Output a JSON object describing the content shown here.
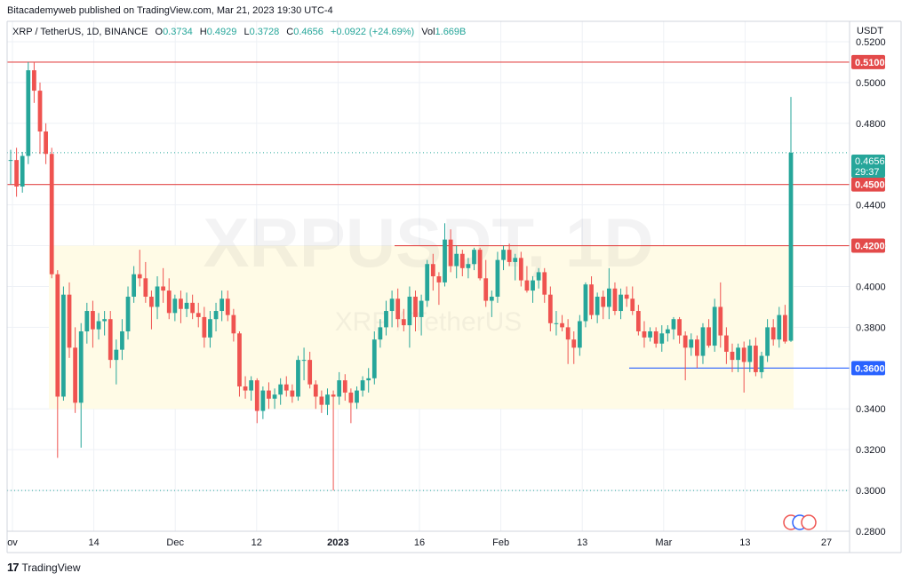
{
  "publisher_line": "Bitacademyweb published on TradingView.com, Mar 21, 2023 19:30 UTC-4",
  "legend": {
    "symbol": "XRP / TetherUS, 1D, BINANCE",
    "o_label": "O",
    "o": "0.3734",
    "h_label": "H",
    "h": "0.4929",
    "l_label": "L",
    "l": "0.3728",
    "c_label": "C",
    "c": "0.4656",
    "change": "+0.0922 (+24.69%)",
    "vol_label": "Vol",
    "vol": "1.669B"
  },
  "watermark": {
    "main": "XRPUSDT, 1D",
    "sub": "XRP / TetherUS"
  },
  "price_axis": {
    "unit": "USDT",
    "ticks": [
      "0.5200",
      "0.5000",
      "0.4800",
      "0.4400",
      "0.4200",
      "0.4000",
      "0.3800",
      "0.3400",
      "0.3200",
      "0.3000",
      "0.2800"
    ],
    "current_price": "0.4656",
    "countdown": "29:37"
  },
  "time_axis": {
    "ticks": [
      "ov",
      "14",
      "Dec",
      "12",
      "2023",
      "16",
      "Feb",
      "13",
      "Mar",
      "13",
      "27"
    ]
  },
  "levels": [
    {
      "label": "0.5100",
      "value": 0.51,
      "color": "#e34a4a"
    },
    {
      "label": "0.4500",
      "value": 0.45,
      "color": "#e34a4a"
    },
    {
      "label": "0.4200",
      "value": 0.42,
      "color": "#e34a4a"
    },
    {
      "label": "0.3600",
      "value": 0.36,
      "color": "#2962ff"
    }
  ],
  "footer_brand": "TradingView",
  "colors": {
    "up": "#26a69a",
    "down": "#ef5350",
    "zone": "#fffbe6",
    "grid": "#eef1f6"
  },
  "chart_data": {
    "type": "candlestick",
    "title": "XRP / TetherUS, 1D, BINANCE",
    "ylabel": "USDT",
    "ylim": [
      0.28,
      0.53
    ],
    "consolidation_zone": [
      0.34,
      0.42
    ],
    "candles": [
      {
        "o": 0.462,
        "h": 0.467,
        "l": 0.45,
        "c": 0.462
      },
      {
        "o": 0.462,
        "h": 0.468,
        "l": 0.444,
        "c": 0.449
      },
      {
        "o": 0.449,
        "h": 0.466,
        "l": 0.446,
        "c": 0.464
      },
      {
        "o": 0.464,
        "h": 0.51,
        "l": 0.46,
        "c": 0.506
      },
      {
        "o": 0.506,
        "h": 0.51,
        "l": 0.49,
        "c": 0.496
      },
      {
        "o": 0.496,
        "h": 0.5,
        "l": 0.465,
        "c": 0.476
      },
      {
        "o": 0.476,
        "h": 0.48,
        "l": 0.46,
        "c": 0.465
      },
      {
        "o": 0.465,
        "h": 0.468,
        "l": 0.404,
        "c": 0.406
      },
      {
        "o": 0.406,
        "h": 0.408,
        "l": 0.316,
        "c": 0.346
      },
      {
        "o": 0.346,
        "h": 0.4,
        "l": 0.344,
        "c": 0.396
      },
      {
        "o": 0.396,
        "h": 0.402,
        "l": 0.365,
        "c": 0.37
      },
      {
        "o": 0.37,
        "h": 0.38,
        "l": 0.338,
        "c": 0.343
      },
      {
        "o": 0.343,
        "h": 0.382,
        "l": 0.321,
        "c": 0.378
      },
      {
        "o": 0.378,
        "h": 0.392,
        "l": 0.372,
        "c": 0.388
      },
      {
        "o": 0.388,
        "h": 0.393,
        "l": 0.37,
        "c": 0.379
      },
      {
        "o": 0.379,
        "h": 0.387,
        "l": 0.374,
        "c": 0.383
      },
      {
        "o": 0.383,
        "h": 0.388,
        "l": 0.376,
        "c": 0.384
      },
      {
        "o": 0.384,
        "h": 0.388,
        "l": 0.36,
        "c": 0.364
      },
      {
        "o": 0.364,
        "h": 0.374,
        "l": 0.352,
        "c": 0.369
      },
      {
        "o": 0.369,
        "h": 0.384,
        "l": 0.364,
        "c": 0.378
      },
      {
        "o": 0.378,
        "h": 0.4,
        "l": 0.374,
        "c": 0.395
      },
      {
        "o": 0.395,
        "h": 0.41,
        "l": 0.392,
        "c": 0.406
      },
      {
        "o": 0.406,
        "h": 0.418,
        "l": 0.4,
        "c": 0.404
      },
      {
        "o": 0.404,
        "h": 0.412,
        "l": 0.392,
        "c": 0.395
      },
      {
        "o": 0.395,
        "h": 0.398,
        "l": 0.379,
        "c": 0.39
      },
      {
        "o": 0.39,
        "h": 0.405,
        "l": 0.384,
        "c": 0.4
      },
      {
        "o": 0.4,
        "h": 0.409,
        "l": 0.392,
        "c": 0.398
      },
      {
        "o": 0.398,
        "h": 0.404,
        "l": 0.384,
        "c": 0.387
      },
      {
        "o": 0.387,
        "h": 0.396,
        "l": 0.383,
        "c": 0.394
      },
      {
        "o": 0.394,
        "h": 0.398,
        "l": 0.382,
        "c": 0.389
      },
      {
        "o": 0.389,
        "h": 0.397,
        "l": 0.385,
        "c": 0.392
      },
      {
        "o": 0.392,
        "h": 0.396,
        "l": 0.384,
        "c": 0.387
      },
      {
        "o": 0.387,
        "h": 0.392,
        "l": 0.38,
        "c": 0.385
      },
      {
        "o": 0.385,
        "h": 0.39,
        "l": 0.37,
        "c": 0.375
      },
      {
        "o": 0.375,
        "h": 0.388,
        "l": 0.37,
        "c": 0.384
      },
      {
        "o": 0.384,
        "h": 0.392,
        "l": 0.378,
        "c": 0.388
      },
      {
        "o": 0.388,
        "h": 0.398,
        "l": 0.383,
        "c": 0.394
      },
      {
        "o": 0.394,
        "h": 0.398,
        "l": 0.383,
        "c": 0.386
      },
      {
        "o": 0.386,
        "h": 0.389,
        "l": 0.373,
        "c": 0.377
      },
      {
        "o": 0.377,
        "h": 0.378,
        "l": 0.346,
        "c": 0.351
      },
      {
        "o": 0.351,
        "h": 0.356,
        "l": 0.345,
        "c": 0.349
      },
      {
        "o": 0.349,
        "h": 0.356,
        "l": 0.344,
        "c": 0.354
      },
      {
        "o": 0.354,
        "h": 0.355,
        "l": 0.333,
        "c": 0.339
      },
      {
        "o": 0.339,
        "h": 0.351,
        "l": 0.335,
        "c": 0.349
      },
      {
        "o": 0.349,
        "h": 0.353,
        "l": 0.34,
        "c": 0.345
      },
      {
        "o": 0.345,
        "h": 0.35,
        "l": 0.34,
        "c": 0.347
      },
      {
        "o": 0.347,
        "h": 0.355,
        "l": 0.342,
        "c": 0.352
      },
      {
        "o": 0.352,
        "h": 0.356,
        "l": 0.346,
        "c": 0.349
      },
      {
        "o": 0.349,
        "h": 0.352,
        "l": 0.343,
        "c": 0.346
      },
      {
        "o": 0.346,
        "h": 0.366,
        "l": 0.344,
        "c": 0.364
      },
      {
        "o": 0.364,
        "h": 0.37,
        "l": 0.354,
        "c": 0.364
      },
      {
        "o": 0.364,
        "h": 0.368,
        "l": 0.35,
        "c": 0.352
      },
      {
        "o": 0.352,
        "h": 0.354,
        "l": 0.34,
        "c": 0.346
      },
      {
        "o": 0.346,
        "h": 0.349,
        "l": 0.338,
        "c": 0.342
      },
      {
        "o": 0.342,
        "h": 0.35,
        "l": 0.337,
        "c": 0.347
      },
      {
        "o": 0.347,
        "h": 0.349,
        "l": 0.3,
        "c": 0.346
      },
      {
        "o": 0.346,
        "h": 0.358,
        "l": 0.342,
        "c": 0.354
      },
      {
        "o": 0.354,
        "h": 0.357,
        "l": 0.344,
        "c": 0.348
      },
      {
        "o": 0.348,
        "h": 0.35,
        "l": 0.333,
        "c": 0.343
      },
      {
        "o": 0.343,
        "h": 0.351,
        "l": 0.34,
        "c": 0.349
      },
      {
        "o": 0.349,
        "h": 0.356,
        "l": 0.346,
        "c": 0.354
      },
      {
        "o": 0.354,
        "h": 0.36,
        "l": 0.348,
        "c": 0.355
      },
      {
        "o": 0.355,
        "h": 0.378,
        "l": 0.352,
        "c": 0.374
      },
      {
        "o": 0.374,
        "h": 0.384,
        "l": 0.37,
        "c": 0.38
      },
      {
        "o": 0.38,
        "h": 0.393,
        "l": 0.376,
        "c": 0.388
      },
      {
        "o": 0.388,
        "h": 0.398,
        "l": 0.38,
        "c": 0.394
      },
      {
        "o": 0.394,
        "h": 0.399,
        "l": 0.38,
        "c": 0.384
      },
      {
        "o": 0.384,
        "h": 0.389,
        "l": 0.378,
        "c": 0.381
      },
      {
        "o": 0.381,
        "h": 0.4,
        "l": 0.37,
        "c": 0.395
      },
      {
        "o": 0.395,
        "h": 0.398,
        "l": 0.378,
        "c": 0.385
      },
      {
        "o": 0.385,
        "h": 0.396,
        "l": 0.376,
        "c": 0.393
      },
      {
        "o": 0.393,
        "h": 0.413,
        "l": 0.39,
        "c": 0.411
      },
      {
        "o": 0.411,
        "h": 0.416,
        "l": 0.398,
        "c": 0.405
      },
      {
        "o": 0.405,
        "h": 0.407,
        "l": 0.391,
        "c": 0.402
      },
      {
        "o": 0.402,
        "h": 0.431,
        "l": 0.4,
        "c": 0.423
      },
      {
        "o": 0.423,
        "h": 0.428,
        "l": 0.407,
        "c": 0.41
      },
      {
        "o": 0.41,
        "h": 0.42,
        "l": 0.404,
        "c": 0.416
      },
      {
        "o": 0.416,
        "h": 0.418,
        "l": 0.405,
        "c": 0.409
      },
      {
        "o": 0.409,
        "h": 0.414,
        "l": 0.404,
        "c": 0.411
      },
      {
        "o": 0.411,
        "h": 0.419,
        "l": 0.408,
        "c": 0.418
      },
      {
        "o": 0.418,
        "h": 0.419,
        "l": 0.403,
        "c": 0.404
      },
      {
        "o": 0.404,
        "h": 0.413,
        "l": 0.39,
        "c": 0.393
      },
      {
        "o": 0.393,
        "h": 0.398,
        "l": 0.385,
        "c": 0.395
      },
      {
        "o": 0.395,
        "h": 0.417,
        "l": 0.392,
        "c": 0.413
      },
      {
        "o": 0.413,
        "h": 0.42,
        "l": 0.408,
        "c": 0.418
      },
      {
        "o": 0.418,
        "h": 0.421,
        "l": 0.41,
        "c": 0.412
      },
      {
        "o": 0.412,
        "h": 0.416,
        "l": 0.403,
        "c": 0.414
      },
      {
        "o": 0.414,
        "h": 0.417,
        "l": 0.4,
        "c": 0.403
      },
      {
        "o": 0.403,
        "h": 0.41,
        "l": 0.397,
        "c": 0.398
      },
      {
        "o": 0.398,
        "h": 0.405,
        "l": 0.392,
        "c": 0.403
      },
      {
        "o": 0.403,
        "h": 0.409,
        "l": 0.399,
        "c": 0.407
      },
      {
        "o": 0.407,
        "h": 0.409,
        "l": 0.392,
        "c": 0.396
      },
      {
        "o": 0.396,
        "h": 0.4,
        "l": 0.378,
        "c": 0.382
      },
      {
        "o": 0.382,
        "h": 0.388,
        "l": 0.376,
        "c": 0.382
      },
      {
        "o": 0.382,
        "h": 0.386,
        "l": 0.378,
        "c": 0.38
      },
      {
        "o": 0.38,
        "h": 0.384,
        "l": 0.362,
        "c": 0.374
      },
      {
        "o": 0.374,
        "h": 0.378,
        "l": 0.362,
        "c": 0.37
      },
      {
        "o": 0.37,
        "h": 0.386,
        "l": 0.366,
        "c": 0.383
      },
      {
        "o": 0.383,
        "h": 0.402,
        "l": 0.38,
        "c": 0.401
      },
      {
        "o": 0.401,
        "h": 0.405,
        "l": 0.384,
        "c": 0.386
      },
      {
        "o": 0.386,
        "h": 0.397,
        "l": 0.382,
        "c": 0.395
      },
      {
        "o": 0.395,
        "h": 0.398,
        "l": 0.384,
        "c": 0.39
      },
      {
        "o": 0.39,
        "h": 0.409,
        "l": 0.384,
        "c": 0.399
      },
      {
        "o": 0.399,
        "h": 0.402,
        "l": 0.386,
        "c": 0.388
      },
      {
        "o": 0.388,
        "h": 0.399,
        "l": 0.384,
        "c": 0.396
      },
      {
        "o": 0.396,
        "h": 0.4,
        "l": 0.39,
        "c": 0.394
      },
      {
        "o": 0.394,
        "h": 0.4,
        "l": 0.386,
        "c": 0.388
      },
      {
        "o": 0.388,
        "h": 0.391,
        "l": 0.376,
        "c": 0.378
      },
      {
        "o": 0.378,
        "h": 0.383,
        "l": 0.37,
        "c": 0.375
      },
      {
        "o": 0.375,
        "h": 0.38,
        "l": 0.373,
        "c": 0.378
      },
      {
        "o": 0.378,
        "h": 0.38,
        "l": 0.37,
        "c": 0.372
      },
      {
        "o": 0.372,
        "h": 0.381,
        "l": 0.368,
        "c": 0.377
      },
      {
        "o": 0.377,
        "h": 0.381,
        "l": 0.373,
        "c": 0.379
      },
      {
        "o": 0.379,
        "h": 0.385,
        "l": 0.374,
        "c": 0.384
      },
      {
        "o": 0.384,
        "h": 0.385,
        "l": 0.372,
        "c": 0.376
      },
      {
        "o": 0.376,
        "h": 0.378,
        "l": 0.354,
        "c": 0.37
      },
      {
        "o": 0.37,
        "h": 0.377,
        "l": 0.366,
        "c": 0.374
      },
      {
        "o": 0.374,
        "h": 0.376,
        "l": 0.36,
        "c": 0.366
      },
      {
        "o": 0.366,
        "h": 0.382,
        "l": 0.362,
        "c": 0.38
      },
      {
        "o": 0.38,
        "h": 0.384,
        "l": 0.37,
        "c": 0.371
      },
      {
        "o": 0.371,
        "h": 0.394,
        "l": 0.368,
        "c": 0.39
      },
      {
        "o": 0.39,
        "h": 0.402,
        "l": 0.37,
        "c": 0.376
      },
      {
        "o": 0.376,
        "h": 0.38,
        "l": 0.362,
        "c": 0.368
      },
      {
        "o": 0.368,
        "h": 0.372,
        "l": 0.358,
        "c": 0.364
      },
      {
        "o": 0.364,
        "h": 0.372,
        "l": 0.358,
        "c": 0.37
      },
      {
        "o": 0.37,
        "h": 0.373,
        "l": 0.348,
        "c": 0.363
      },
      {
        "o": 0.363,
        "h": 0.374,
        "l": 0.358,
        "c": 0.371
      },
      {
        "o": 0.371,
        "h": 0.375,
        "l": 0.356,
        "c": 0.358
      },
      {
        "o": 0.358,
        "h": 0.368,
        "l": 0.355,
        "c": 0.366
      },
      {
        "o": 0.366,
        "h": 0.384,
        "l": 0.363,
        "c": 0.38
      },
      {
        "o": 0.38,
        "h": 0.384,
        "l": 0.371,
        "c": 0.374
      },
      {
        "o": 0.374,
        "h": 0.39,
        "l": 0.37,
        "c": 0.386
      },
      {
        "o": 0.386,
        "h": 0.391,
        "l": 0.372,
        "c": 0.373
      },
      {
        "o": 0.3734,
        "h": 0.4929,
        "l": 0.3728,
        "c": 0.4656
      }
    ]
  }
}
